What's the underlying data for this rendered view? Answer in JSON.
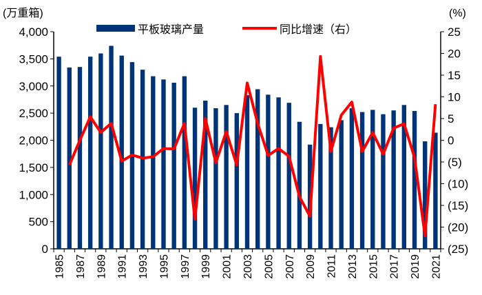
{
  "chart_data": {
    "type": "bar+line",
    "left_unit_label": "(万重箱)",
    "right_unit_label": "(%)",
    "categories": [
      "1985",
      "1986",
      "1987",
      "1988",
      "1989",
      "1990",
      "1991",
      "1992",
      "1993",
      "1994",
      "1995",
      "1996",
      "1997",
      "1998",
      "1999",
      "2000",
      "2001",
      "2002",
      "2003",
      "2004",
      "2005",
      "2006",
      "2007",
      "2008",
      "2009",
      "2010",
      "2011",
      "2012",
      "2013",
      "2014",
      "2015",
      "2016",
      "2017",
      "2018",
      "2019",
      "2020",
      "2021"
    ],
    "series": [
      {
        "name": "平板玻璃产量",
        "type": "bar",
        "axis": "left",
        "color": "#003478",
        "values": [
          3540,
          3340,
          3350,
          3540,
          3600,
          3740,
          3560,
          3440,
          3300,
          3180,
          3120,
          3060,
          3180,
          2600,
          2730,
          2590,
          2650,
          2500,
          2830,
          2940,
          2840,
          2790,
          2690,
          2340,
          1920,
          2300,
          2240,
          2370,
          2590,
          2520,
          2560,
          2480,
          2550,
          2650,
          2540,
          1980,
          2140
        ]
      },
      {
        "name": "同比增速（右）",
        "type": "line",
        "axis": "right",
        "color": "#ff0000",
        "values": [
          null,
          -5.7,
          0,
          5.4,
          1.8,
          3.9,
          -4.8,
          -3.4,
          -4.1,
          -3.8,
          -1.9,
          -2,
          3.9,
          -18.2,
          5,
          -5.2,
          2,
          -5.7,
          13.2,
          3.9,
          -3.5,
          -1.9,
          -3.7,
          -13,
          -17.5,
          19.3,
          -2.6,
          5.8,
          8.8,
          -2.6,
          1.8,
          -3.2,
          2.8,
          3.8,
          -4,
          -22,
          8.3
        ]
      }
    ],
    "left_ylim": [
      0,
      4000
    ],
    "left_ticks": [
      "0",
      "500",
      "1,000",
      "1,500",
      "2,000",
      "2,500",
      "3,000",
      "3,500",
      "4,000"
    ],
    "right_ylim": [
      -25,
      25
    ],
    "right_ticks": [
      "(25)",
      "(20)",
      "(15)",
      "(10)",
      "(5)",
      "0",
      "5",
      "10",
      "15",
      "20",
      "25"
    ],
    "x_tick_labels": [
      "1985",
      "1987",
      "1989",
      "1991",
      "1993",
      "1995",
      "1997",
      "1999",
      "2001",
      "2003",
      "2005",
      "2007",
      "2009",
      "2011",
      "2013",
      "2015",
      "2017",
      "2019",
      "2021"
    ],
    "grid": false,
    "legend_position": "top"
  }
}
